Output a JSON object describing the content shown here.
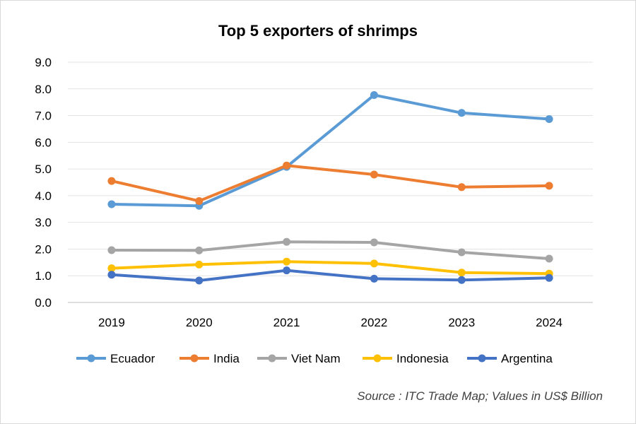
{
  "chart_data": {
    "type": "line",
    "title": "Top 5 exporters of shrimps",
    "categories": [
      "2019",
      "2020",
      "2021",
      "2022",
      "2023",
      "2024"
    ],
    "ylim": [
      0,
      9
    ],
    "yticks": [
      "0.0",
      "1.0",
      "2.0",
      "3.0",
      "4.0",
      "5.0",
      "6.0",
      "7.0",
      "8.0",
      "9.0"
    ],
    "grid": true,
    "legend_position": "bottom",
    "series": [
      {
        "name": "Ecuador",
        "color": "#5B9BD5",
        "values": [
          3.68,
          3.62,
          5.08,
          7.77,
          7.1,
          6.87
        ]
      },
      {
        "name": "India",
        "color": "#ED7D31",
        "values": [
          4.55,
          3.8,
          5.13,
          4.79,
          4.32,
          4.37
        ]
      },
      {
        "name": "Viet Nam",
        "color": "#A5A5A5",
        "values": [
          1.96,
          1.95,
          2.27,
          2.25,
          1.88,
          1.64
        ]
      },
      {
        "name": "Indonesia",
        "color": "#FFC000",
        "values": [
          1.28,
          1.42,
          1.53,
          1.46,
          1.12,
          1.08
        ]
      },
      {
        "name": "Argentina",
        "color": "#4472C4",
        "values": [
          1.04,
          0.82,
          1.2,
          0.89,
          0.84,
          0.92
        ]
      }
    ]
  },
  "source_note": "Source : ITC Trade Map; Values in US$ Billion"
}
